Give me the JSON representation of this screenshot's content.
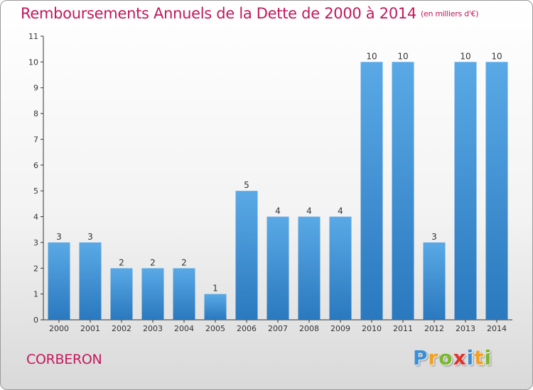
{
  "title": "Remboursements Annuels de la Dette de 2000 à 2014",
  "unit": "(en milliers d'€)",
  "commune": "CORBERON",
  "logo": {
    "letters": [
      "P",
      "r",
      "o",
      "x",
      "i",
      "t",
      "i"
    ],
    "colors": [
      "#3a8fd6",
      "#f2a01e",
      "#7ab82e",
      "#e0342f",
      "#3a8fd6",
      "#f2a01e",
      "#7ab82e"
    ]
  },
  "colors": {
    "bar_top": "#5aa9e6",
    "bar_bottom": "#2a78be",
    "title": "#c2185b"
  },
  "chart_data": {
    "type": "bar",
    "categories": [
      "2000",
      "2001",
      "2002",
      "2003",
      "2004",
      "2005",
      "2006",
      "2007",
      "2008",
      "2009",
      "2010",
      "2011",
      "2012",
      "2013",
      "2014"
    ],
    "values": [
      3,
      3,
      2,
      2,
      2,
      1,
      5,
      4,
      4,
      4,
      10,
      10,
      3,
      10,
      10
    ],
    "value_labels": [
      "3",
      "3",
      "2",
      "2",
      "2",
      "1",
      "5",
      "4",
      "4",
      "4",
      "10",
      "10",
      "3",
      "10",
      "10"
    ],
    "yticks": [
      "0",
      "1",
      "2",
      "3",
      "4",
      "5",
      "6",
      "7",
      "8",
      "9",
      "10",
      "11"
    ],
    "ylim": [
      0,
      11
    ],
    "grid": false,
    "legend": "none"
  }
}
